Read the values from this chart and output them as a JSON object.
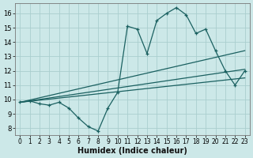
{
  "xlabel": "Humidex (Indice chaleur)",
  "xlim": [
    -0.5,
    23.5
  ],
  "ylim": [
    7.5,
    16.7
  ],
  "yticks": [
    8,
    9,
    10,
    11,
    12,
    13,
    14,
    15,
    16
  ],
  "xticks": [
    0,
    1,
    2,
    3,
    4,
    5,
    6,
    7,
    8,
    9,
    10,
    11,
    12,
    13,
    14,
    15,
    16,
    17,
    18,
    19,
    20,
    21,
    22,
    23
  ],
  "bg_color": "#cce8e8",
  "line_color": "#1a6060",
  "grid_color": "#aacece",
  "zigzag_x": [
    0,
    1,
    2,
    3,
    4,
    5,
    6,
    7,
    8,
    9,
    10,
    11,
    12,
    13,
    14,
    15,
    16,
    17,
    18,
    19,
    20,
    21,
    22,
    23
  ],
  "zigzag_y": [
    9.8,
    9.9,
    9.7,
    9.6,
    9.8,
    9.4,
    8.7,
    8.1,
    7.8,
    9.4,
    10.5,
    15.1,
    14.9,
    13.2,
    15.5,
    16.0,
    16.4,
    15.9,
    14.6,
    14.9,
    13.4,
    12.0,
    11.0,
    12.0
  ],
  "line1_x": [
    0,
    23
  ],
  "line1_y": [
    9.8,
    13.4
  ],
  "line2_x": [
    0,
    23
  ],
  "line2_y": [
    9.8,
    12.1
  ],
  "line3_x": [
    0,
    23
  ],
  "line3_y": [
    9.8,
    11.5
  ]
}
